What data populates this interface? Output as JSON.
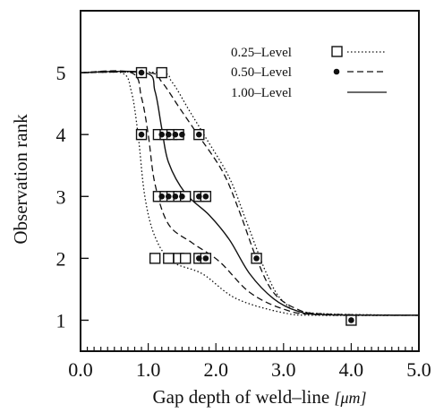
{
  "chart_data": {
    "type": "scatter",
    "title": "",
    "xlabel": "Gap depth of weld–line",
    "xunit": "[μm]",
    "ylabel": "Observation rank",
    "xlim": [
      0.0,
      5.0
    ],
    "ylim": [
      0.5,
      6.0
    ],
    "xticks": [
      "0.0",
      "1.0",
      "2.0",
      "3.0",
      "4.0",
      "5.0"
    ],
    "yticks": [
      "1",
      "2",
      "3",
      "4",
      "5"
    ],
    "grid": false,
    "legend_position": "top-right",
    "legend": [
      {
        "label": "0.25–Level",
        "marker": "square",
        "line": "dotted"
      },
      {
        "label": "0.50–Level",
        "marker": "dot",
        "line": "dashed"
      },
      {
        "label": "1.00–Level",
        "marker": "none",
        "line": "solid"
      }
    ],
    "series": [
      {
        "name": "0.25–Level",
        "points": [
          [
            0.9,
            5
          ],
          [
            1.2,
            5
          ],
          [
            0.9,
            4
          ],
          [
            1.15,
            4
          ],
          [
            1.25,
            4
          ],
          [
            1.35,
            4
          ],
          [
            1.45,
            4
          ],
          [
            1.75,
            4
          ],
          [
            1.15,
            3
          ],
          [
            1.25,
            3
          ],
          [
            1.35,
            3
          ],
          [
            1.45,
            3
          ],
          [
            1.55,
            3
          ],
          [
            1.75,
            3
          ],
          [
            1.85,
            3
          ],
          [
            1.1,
            2
          ],
          [
            1.3,
            2
          ],
          [
            1.45,
            2
          ],
          [
            1.55,
            2
          ],
          [
            1.75,
            2
          ],
          [
            1.85,
            2
          ],
          [
            2.6,
            2
          ],
          [
            4.0,
            1
          ]
        ]
      },
      {
        "name": "0.50–Level",
        "points": [
          [
            0.9,
            5
          ],
          [
            0.9,
            4
          ],
          [
            1.2,
            4
          ],
          [
            1.3,
            4
          ],
          [
            1.4,
            4
          ],
          [
            1.5,
            4
          ],
          [
            1.75,
            4
          ],
          [
            1.2,
            3
          ],
          [
            1.3,
            3
          ],
          [
            1.4,
            3
          ],
          [
            1.5,
            3
          ],
          [
            1.75,
            3
          ],
          [
            1.85,
            3
          ],
          [
            1.75,
            2
          ],
          [
            1.85,
            2
          ],
          [
            2.6,
            2
          ],
          [
            4.0,
            1
          ]
        ]
      }
    ],
    "curves": [
      {
        "name": "0.25–Level",
        "style": "dotted",
        "points": [
          [
            0,
            5
          ],
          [
            0.6,
            5
          ],
          [
            0.75,
            4.7
          ],
          [
            0.85,
            4
          ],
          [
            0.95,
            3
          ],
          [
            1.1,
            2.35
          ],
          [
            1.35,
            1.95
          ],
          [
            1.8,
            1.75
          ],
          [
            2.3,
            1.35
          ],
          [
            3.0,
            1.12
          ],
          [
            3.5,
            1.08
          ],
          [
            5,
            1.08
          ]
        ]
      },
      {
        "name": "0.25–Level",
        "style": "dotted",
        "points": [
          [
            0,
            5
          ],
          [
            1.15,
            5
          ],
          [
            1.35,
            4.85
          ],
          [
            1.6,
            4.4
          ],
          [
            1.85,
            3.95
          ],
          [
            2.2,
            3.3
          ],
          [
            2.45,
            2.6
          ],
          [
            2.75,
            1.75
          ],
          [
            3.0,
            1.3
          ],
          [
            3.4,
            1.12
          ],
          [
            5,
            1.08
          ]
        ]
      },
      {
        "name": "0.50–Level",
        "style": "dashed",
        "points": [
          [
            0,
            5
          ],
          [
            0.75,
            5
          ],
          [
            0.9,
            4.6
          ],
          [
            1.0,
            4
          ],
          [
            1.1,
            3.2
          ],
          [
            1.3,
            2.55
          ],
          [
            1.65,
            2.25
          ],
          [
            2.05,
            1.95
          ],
          [
            2.5,
            1.45
          ],
          [
            3.0,
            1.18
          ],
          [
            3.5,
            1.09
          ],
          [
            5,
            1.08
          ]
        ]
      },
      {
        "name": "0.50–Level",
        "style": "dashed",
        "points": [
          [
            0,
            5
          ],
          [
            1.0,
            5
          ],
          [
            1.2,
            4.85
          ],
          [
            1.45,
            4.45
          ],
          [
            1.7,
            4.05
          ],
          [
            2.1,
            3.4
          ],
          [
            2.35,
            2.75
          ],
          [
            2.6,
            2.0
          ],
          [
            2.85,
            1.45
          ],
          [
            3.2,
            1.18
          ],
          [
            3.6,
            1.1
          ],
          [
            5,
            1.08
          ]
        ]
      },
      {
        "name": "1.00–Level",
        "style": "solid",
        "points": [
          [
            0,
            5
          ],
          [
            0.95,
            5
          ],
          [
            1.1,
            4.7
          ],
          [
            1.2,
            4.1
          ],
          [
            1.3,
            3.55
          ],
          [
            1.55,
            3.05
          ],
          [
            1.9,
            2.7
          ],
          [
            2.2,
            2.3
          ],
          [
            2.5,
            1.75
          ],
          [
            2.85,
            1.35
          ],
          [
            3.2,
            1.15
          ],
          [
            3.6,
            1.09
          ],
          [
            5,
            1.08
          ]
        ]
      }
    ]
  }
}
